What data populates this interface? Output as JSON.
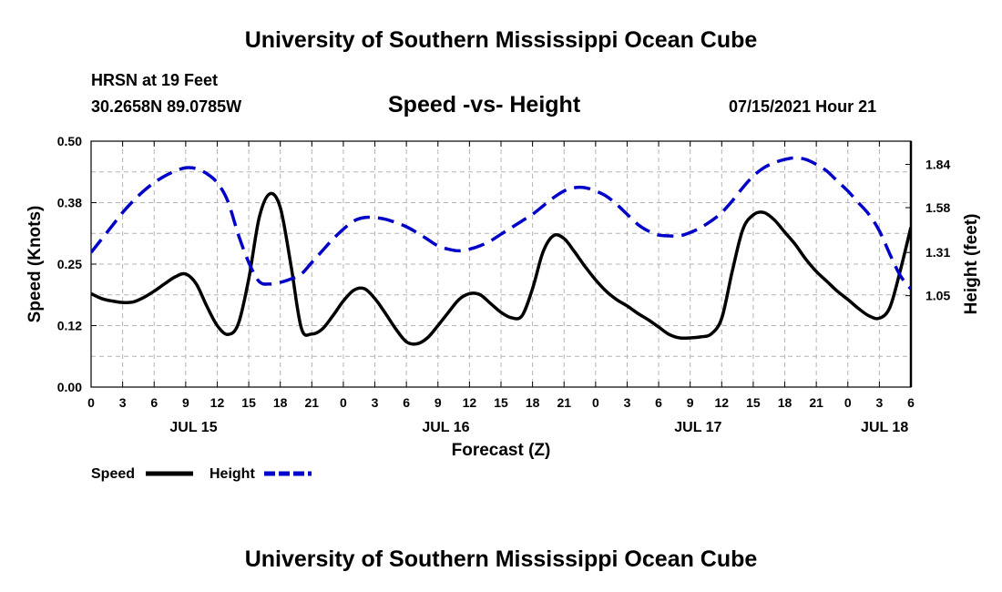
{
  "header": {
    "title_top": "University of Southern Mississippi Ocean Cube",
    "title_bottom": "University of Southern Mississippi Ocean Cube",
    "station": "HRSN at 19 Feet",
    "coords": "30.2658N  89.0785W",
    "chart_title": "Speed -vs- Height",
    "timestamp": "07/15/2021 Hour 21"
  },
  "colors": {
    "speed": "#000000",
    "height": "#0000c8",
    "grid": "#b4b4b4"
  },
  "chart_data": {
    "type": "line",
    "title": "Speed -vs- Height",
    "xlabel": "Forecast (Z)",
    "ylabel": "Speed (Knots)",
    "y2label": "Height (feet)",
    "x_range_hours": [
      0,
      78
    ],
    "ylim": [
      0,
      0.5
    ],
    "y2lim": [
      0.5,
      1.98
    ],
    "yticks": [
      "0.00",
      "0.12",
      "0.25",
      "0.38",
      "0.50"
    ],
    "yticks_values": [
      0,
      0.125,
      0.25,
      0.375,
      0.5
    ],
    "y2ticks": [
      "1.05",
      "1.31",
      "1.58",
      "1.84"
    ],
    "y2ticks_values": [
      1.05,
      1.31,
      1.58,
      1.84
    ],
    "xticks": [
      "0",
      "3",
      "6",
      "9",
      "12",
      "15",
      "18",
      "21",
      "0",
      "3",
      "6",
      "9",
      "12",
      "15",
      "18",
      "21",
      "0",
      "3",
      "6",
      "9",
      "12",
      "15",
      "18",
      "21",
      "0",
      "3",
      "6"
    ],
    "xtick_hours": [
      0,
      3,
      6,
      9,
      12,
      15,
      18,
      21,
      24,
      27,
      30,
      33,
      36,
      39,
      42,
      45,
      48,
      51,
      54,
      57,
      60,
      63,
      66,
      69,
      72,
      75,
      78
    ],
    "date_labels": [
      {
        "label": "JUL 15",
        "hour": 9.75
      },
      {
        "label": "JUL 16",
        "hour": 33.75
      },
      {
        "label": "JUL 17",
        "hour": 57.75
      },
      {
        "label": "JUL 18",
        "hour": 75.5
      }
    ],
    "legend": [
      {
        "name": "Speed",
        "style": "solid"
      },
      {
        "name": "Height",
        "style": "dashed"
      }
    ],
    "series": [
      {
        "name": "Speed",
        "axis": "left",
        "x": [
          0,
          1,
          2,
          3,
          4,
          5,
          6,
          7,
          8,
          9,
          10,
          11,
          12,
          13,
          14,
          15,
          16,
          17,
          18,
          19,
          20,
          21,
          22,
          23,
          24,
          25,
          26,
          27,
          28,
          29,
          30,
          31,
          32,
          33,
          34,
          35,
          36,
          37,
          38,
          39,
          40,
          41,
          42,
          43,
          44,
          45,
          46,
          47,
          48,
          49,
          50,
          51,
          52,
          53,
          54,
          55,
          56,
          57,
          58,
          59,
          60,
          61,
          62,
          63,
          64,
          65,
          66,
          67,
          68,
          69,
          70,
          71,
          72,
          73,
          74,
          75,
          76,
          77,
          78
        ],
        "values": [
          0.19,
          0.18,
          0.175,
          0.172,
          0.173,
          0.182,
          0.195,
          0.21,
          0.224,
          0.23,
          0.21,
          0.165,
          0.125,
          0.107,
          0.128,
          0.22,
          0.345,
          0.393,
          0.365,
          0.25,
          0.12,
          0.108,
          0.118,
          0.145,
          0.175,
          0.197,
          0.2,
          0.18,
          0.15,
          0.118,
          0.092,
          0.088,
          0.1,
          0.125,
          0.152,
          0.178,
          0.19,
          0.188,
          0.17,
          0.152,
          0.141,
          0.145,
          0.2,
          0.275,
          0.308,
          0.302,
          0.275,
          0.245,
          0.218,
          0.195,
          0.178,
          0.165,
          0.15,
          0.137,
          0.122,
          0.107,
          0.1,
          0.1,
          0.102,
          0.108,
          0.14,
          0.235,
          0.32,
          0.35,
          0.355,
          0.34,
          0.315,
          0.29,
          0.26,
          0.235,
          0.215,
          0.195,
          0.178,
          0.16,
          0.145,
          0.14,
          0.162,
          0.238,
          0.325
        ]
      },
      {
        "name": "Height",
        "axis": "right",
        "x": [
          0,
          1,
          2,
          3,
          4,
          5,
          6,
          7,
          8,
          9,
          10,
          11,
          12,
          13,
          14,
          15,
          16,
          17,
          18,
          19,
          20,
          21,
          22,
          23,
          24,
          25,
          26,
          27,
          28,
          29,
          30,
          31,
          32,
          33,
          34,
          35,
          36,
          37,
          38,
          39,
          40,
          41,
          42,
          43,
          44,
          45,
          46,
          47,
          48,
          49,
          50,
          51,
          52,
          53,
          54,
          55,
          56,
          57,
          58,
          59,
          60,
          61,
          62,
          63,
          64,
          65,
          66,
          67,
          68,
          69,
          70,
          71,
          72,
          73,
          74,
          75,
          76,
          77,
          78
        ],
        "values": [
          1.31,
          1.39,
          1.47,
          1.55,
          1.62,
          1.68,
          1.73,
          1.77,
          1.8,
          1.82,
          1.815,
          1.785,
          1.73,
          1.62,
          1.42,
          1.25,
          1.135,
          1.12,
          1.13,
          1.15,
          1.18,
          1.25,
          1.32,
          1.39,
          1.45,
          1.5,
          1.52,
          1.52,
          1.51,
          1.49,
          1.465,
          1.43,
          1.39,
          1.35,
          1.33,
          1.32,
          1.33,
          1.35,
          1.38,
          1.42,
          1.46,
          1.5,
          1.54,
          1.59,
          1.64,
          1.68,
          1.7,
          1.7,
          1.68,
          1.65,
          1.6,
          1.54,
          1.48,
          1.44,
          1.415,
          1.41,
          1.41,
          1.43,
          1.46,
          1.5,
          1.55,
          1.62,
          1.7,
          1.77,
          1.82,
          1.85,
          1.87,
          1.88,
          1.87,
          1.84,
          1.8,
          1.74,
          1.68,
          1.61,
          1.54,
          1.44,
          1.3,
          1.17,
          1.09
        ]
      }
    ]
  }
}
